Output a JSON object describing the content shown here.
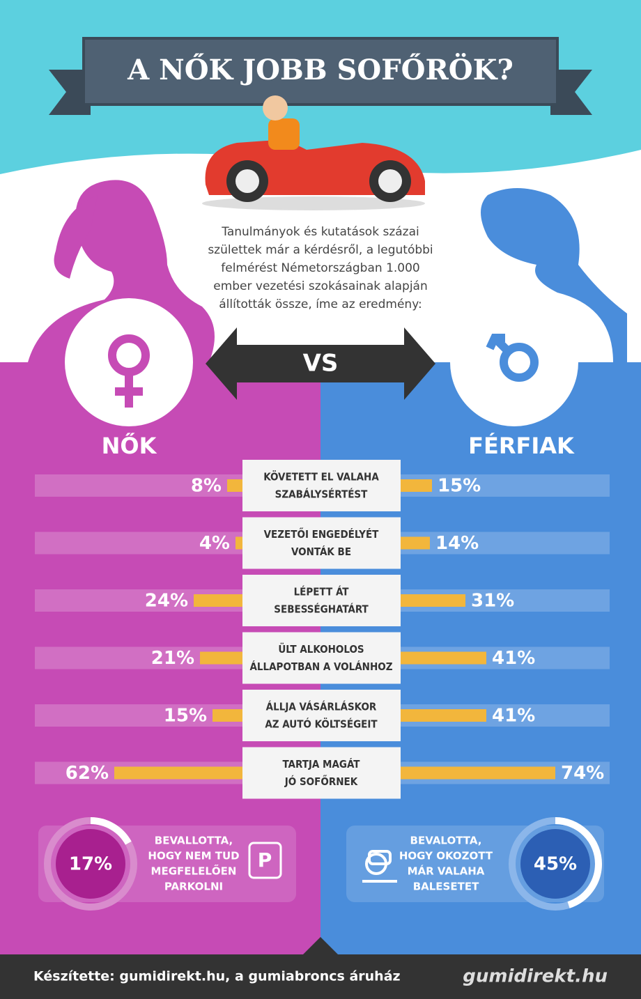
{
  "title": "A NŐK JOBB SOFŐRÖK?",
  "intro": [
    "Tanulmányok és kutatások százai",
    "születtek már a kérdésről, a legutóbbi",
    "felmérést Németországban 1.000",
    "ember vezetési szokásainak alapján",
    "állították össze, íme az eredmény:"
  ],
  "vs": "VS",
  "comparison": {
    "categories": [
      [
        "KÖVETETT EL VALAHA",
        "SZABÁLYSÉRTÉST"
      ],
      [
        "VEZETŐI ENGEDÉLYÉT",
        "VONTÁK BE"
      ],
      [
        "LÉPETT ÁT",
        "SEBESSÉGHATÁRT"
      ],
      [
        "ÜLT ALKOHOLOS",
        "ÁLLAPOTBAN A VOLÁNHOZ"
      ],
      [
        "ÁLLJA VÁSÁRLÁSKOR",
        "AZ AUTÓ KÖLTSÉGEIT"
      ],
      [
        "TARTJA MAGÁT",
        "JÓ SOFŐRNEK"
      ]
    ],
    "xlim": [
      0,
      100
    ],
    "series": [
      {
        "name": "NŐK",
        "color": "#f2b63c",
        "values": [
          8,
          4,
          24,
          21,
          15,
          62
        ],
        "value_labels": [
          "8%",
          "4%",
          "24%",
          "21%",
          "15%",
          "62%"
        ]
      },
      {
        "name": "FÉRFIAK",
        "color": "#f2b63c",
        "values": [
          15,
          14,
          31,
          41,
          41,
          74
        ],
        "value_labels": [
          "15%",
          "14%",
          "31%",
          "41%",
          "41%",
          "74%"
        ]
      }
    ]
  },
  "highlights": [
    {
      "value": 17,
      "label": "17%",
      "text": [
        "BEVALLOTTA,",
        "HOGY NEM TUD",
        "MEGFELELŐEN",
        "PARKOLNI"
      ],
      "icon": "P"
    },
    {
      "value": 45,
      "label": "45%",
      "text": [
        "BEVALOTTA,",
        "HOGY OKOZOTT",
        "MÁR VALAHA",
        "BALESETET"
      ]
    }
  ],
  "footer": {
    "credit": "Készítette: gumidirekt.hu, a gumiabroncs áruház",
    "brand": "gumidirekt.hu"
  }
}
